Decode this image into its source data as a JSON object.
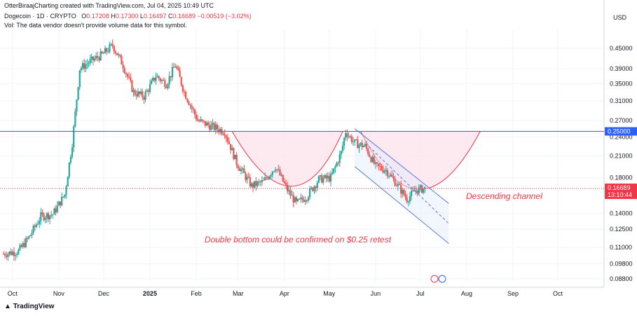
{
  "header": {
    "byline": "OtterBiraajCharting created with TradingView.com, Jul 04, 2025 10:49 UTC",
    "symbol": "Dogecoin · 1D · CRYPTO",
    "open": "O",
    "open_val": "0.17208",
    "high": "H",
    "high_val": "0.17300",
    "low": "L",
    "low_val": "0.16497",
    "close": "C",
    "close_val": "0.16689",
    "change": "−0.00519 (−3.02%)",
    "vol_note": "Vol: The data vendor doesn't provide volume data for this symbol."
  },
  "footer": {
    "logo_text": "TradingView"
  },
  "colors": {
    "up": "#26a69a",
    "down": "#ef5350",
    "bg": "#ffffff",
    "grid": "#f0f3fa",
    "level": "#2962ff",
    "shape_fill": "#fce4ec",
    "shape_stroke": "#f23645",
    "channel": "#5b7bd5",
    "annotation": "#f23645",
    "last_price": "#f23645"
  },
  "chart_data": {
    "type": "candlestick",
    "title": "Dogecoin · 1D · CRYPTO",
    "currency": "USD",
    "y_scale": "log",
    "x_ticks": [
      "Oct",
      "Nov",
      "Dec",
      "2025",
      "Feb",
      "Mar",
      "Apr",
      "May",
      "Jun",
      "Jul",
      "Aug",
      "Sep",
      "Oct"
    ],
    "y_ticks": [
      "0.45000",
      "0.39000",
      "0.35000",
      "0.31000",
      "0.27000",
      "0.24000",
      "0.21000",
      "0.18000",
      "0.14000",
      "0.12500",
      "0.11000",
      "0.09800",
      "0.08800"
    ],
    "price_path": [
      [
        "2024-09-25",
        0.105
      ],
      [
        "2024-10-05",
        0.107
      ],
      [
        "2024-10-12",
        0.118
      ],
      [
        "2024-10-20",
        0.137
      ],
      [
        "2024-10-28",
        0.139
      ],
      [
        "2024-11-05",
        0.16
      ],
      [
        "2024-11-10",
        0.23
      ],
      [
        "2024-11-15",
        0.39
      ],
      [
        "2024-11-22",
        0.41
      ],
      [
        "2024-11-30",
        0.43
      ],
      [
        "2024-12-07",
        0.46
      ],
      [
        "2024-12-14",
        0.4
      ],
      [
        "2024-12-21",
        0.33
      ],
      [
        "2024-12-28",
        0.32
      ],
      [
        "2025-01-05",
        0.37
      ],
      [
        "2025-01-12",
        0.35
      ],
      [
        "2025-01-18",
        0.4
      ],
      [
        "2025-01-24",
        0.33
      ],
      [
        "2025-02-02",
        0.27
      ],
      [
        "2025-02-10",
        0.26
      ],
      [
        "2025-02-20",
        0.25
      ],
      [
        "2025-02-28",
        0.2
      ],
      [
        "2025-03-10",
        0.17
      ],
      [
        "2025-03-18",
        0.175
      ],
      [
        "2025-03-26",
        0.195
      ],
      [
        "2025-04-03",
        0.165
      ],
      [
        "2025-04-09",
        0.15
      ],
      [
        "2025-04-16",
        0.158
      ],
      [
        "2025-04-24",
        0.178
      ],
      [
        "2025-05-02",
        0.18
      ],
      [
        "2025-05-09",
        0.215
      ],
      [
        "2025-05-12",
        0.25
      ],
      [
        "2025-05-18",
        0.23
      ],
      [
        "2025-05-25",
        0.225
      ],
      [
        "2025-06-01",
        0.195
      ],
      [
        "2025-06-08",
        0.19
      ],
      [
        "2025-06-14",
        0.175
      ],
      [
        "2025-06-22",
        0.155
      ],
      [
        "2025-06-28",
        0.165
      ],
      [
        "2025-07-04",
        0.16689
      ]
    ],
    "horizontal_level": {
      "value": 0.25,
      "label": "0.25000"
    },
    "last_price": {
      "value": 0.16689,
      "label": "0.16689",
      "countdown": "13:10:44"
    },
    "annotations": [
      {
        "text": "Double bottom could be confirmed on $0.25 retest"
      },
      {
        "text": "Descending channel"
      }
    ],
    "grid": true
  }
}
